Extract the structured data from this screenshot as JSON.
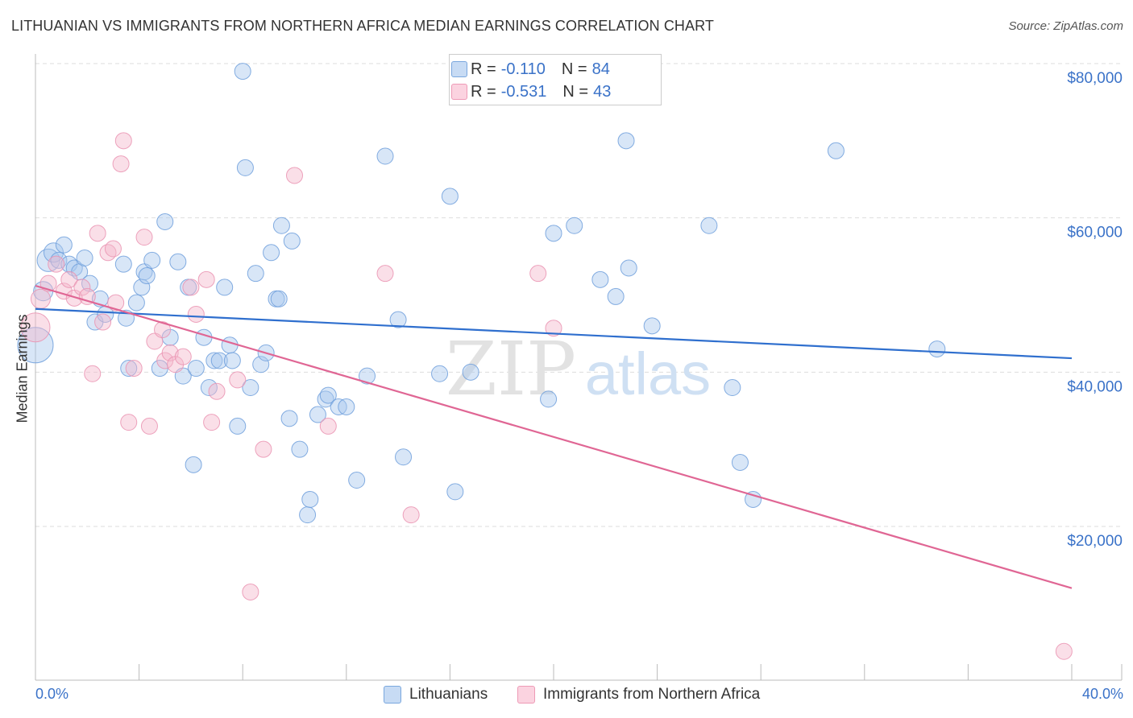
{
  "title": "LITHUANIAN VS IMMIGRANTS FROM NORTHERN AFRICA MEDIAN EARNINGS CORRELATION CHART",
  "source": "Source: ZipAtlas.com",
  "watermark": {
    "zip": "ZIP",
    "atlas": "atlas"
  },
  "legend": {
    "r_label": "R =",
    "n_label": "N =",
    "series1": {
      "r": "-0.110",
      "n": "84"
    },
    "series2": {
      "r": "-0.531",
      "n": "43"
    }
  },
  "colors": {
    "blue_fill": "#a8c8ee",
    "blue_line": "#2f6fce",
    "pink_fill": "#f5b8cc",
    "pink_line": "#e06694",
    "axis_text": "#3a72c8",
    "grid": "#dddddd"
  },
  "chart_data": {
    "type": "scatter",
    "title": "LITHUANIAN VS IMMIGRANTS FROM NORTHERN AFRICA MEDIAN EARNINGS CORRELATION CHART",
    "xlabel": "",
    "ylabel": "Median Earnings",
    "xlim": [
      0,
      40
    ],
    "ylim": [
      0,
      81000
    ],
    "x_tick_labels": [
      "0.0%",
      "40.0%"
    ],
    "y_ticks": [
      20000,
      40000,
      60000,
      80000
    ],
    "y_tick_labels": [
      "$20,000",
      "$40,000",
      "$60,000",
      "$80,000"
    ],
    "series": [
      {
        "name": "Lithuanians",
        "trend": {
          "x": [
            0,
            40
          ],
          "y": [
            48200,
            41800
          ]
        },
        "points": [
          [
            0.0,
            43500,
            22
          ],
          [
            0.3,
            50500,
            12
          ],
          [
            0.5,
            54500,
            14
          ],
          [
            0.7,
            55500,
            12
          ],
          [
            0.9,
            54500,
            10
          ],
          [
            1.1,
            56500,
            10
          ],
          [
            1.3,
            54000,
            10
          ],
          [
            1.5,
            53500,
            10
          ],
          [
            1.7,
            53000,
            10
          ],
          [
            1.9,
            54800,
            10
          ],
          [
            2.1,
            51500,
            10
          ],
          [
            2.3,
            46500,
            10
          ],
          [
            2.5,
            49500,
            10
          ],
          [
            2.7,
            47500,
            10
          ],
          [
            3.4,
            54000,
            10
          ],
          [
            3.5,
            47000,
            10
          ],
          [
            3.6,
            40500,
            10
          ],
          [
            3.9,
            49000,
            10
          ],
          [
            4.1,
            51000,
            10
          ],
          [
            4.2,
            53000,
            10
          ],
          [
            4.3,
            52500,
            10
          ],
          [
            4.5,
            54500,
            10
          ],
          [
            4.8,
            40500,
            10
          ],
          [
            5.0,
            59500,
            10
          ],
          [
            5.2,
            44500,
            10
          ],
          [
            5.5,
            54300,
            10
          ],
          [
            5.7,
            39500,
            10
          ],
          [
            5.9,
            51000,
            10
          ],
          [
            6.1,
            28000,
            10
          ],
          [
            6.2,
            40500,
            10
          ],
          [
            6.5,
            44500,
            10
          ],
          [
            6.7,
            38000,
            10
          ],
          [
            6.9,
            41500,
            10
          ],
          [
            7.1,
            41500,
            10
          ],
          [
            7.3,
            51000,
            10
          ],
          [
            7.5,
            43500,
            10
          ],
          [
            7.6,
            41500,
            10
          ],
          [
            7.8,
            33000,
            10
          ],
          [
            8.0,
            79000,
            10
          ],
          [
            8.1,
            66500,
            10
          ],
          [
            8.3,
            38000,
            10
          ],
          [
            8.5,
            52800,
            10
          ],
          [
            8.7,
            41000,
            10
          ],
          [
            8.9,
            42500,
            10
          ],
          [
            9.1,
            55500,
            10
          ],
          [
            9.3,
            49500,
            10
          ],
          [
            9.4,
            49500,
            10
          ],
          [
            9.5,
            59000,
            10
          ],
          [
            9.8,
            34000,
            10
          ],
          [
            9.9,
            57000,
            10
          ],
          [
            10.2,
            30000,
            10
          ],
          [
            10.5,
            21500,
            10
          ],
          [
            10.6,
            23500,
            10
          ],
          [
            10.9,
            34500,
            10
          ],
          [
            11.2,
            36500,
            10
          ],
          [
            11.3,
            37000,
            10
          ],
          [
            11.7,
            35500,
            10
          ],
          [
            12.0,
            35500,
            10
          ],
          [
            12.4,
            26000,
            10
          ],
          [
            12.8,
            39500,
            10
          ],
          [
            13.5,
            68000,
            10
          ],
          [
            14.0,
            46800,
            10
          ],
          [
            14.2,
            29000,
            10
          ],
          [
            15.6,
            39800,
            10
          ],
          [
            16.0,
            62800,
            10
          ],
          [
            16.2,
            24500,
            10
          ],
          [
            16.8,
            40000,
            10
          ],
          [
            19.8,
            36500,
            10
          ],
          [
            20.0,
            58000,
            10
          ],
          [
            20.8,
            59000,
            10
          ],
          [
            21.8,
            52000,
            10
          ],
          [
            22.4,
            49800,
            10
          ],
          [
            22.8,
            70000,
            10
          ],
          [
            22.9,
            53500,
            10
          ],
          [
            23.8,
            46000,
            10
          ],
          [
            26.0,
            59000,
            10
          ],
          [
            26.9,
            38000,
            10
          ],
          [
            27.2,
            28300,
            10
          ],
          [
            27.7,
            23500,
            10
          ],
          [
            30.9,
            68700,
            10
          ],
          [
            34.8,
            43000,
            10
          ]
        ]
      },
      {
        "name": "Immigrants from Northern Africa",
        "trend": {
          "x": [
            0,
            40
          ],
          "y": [
            51200,
            12000
          ]
        },
        "points": [
          [
            0.0,
            45800,
            18
          ],
          [
            0.2,
            49500,
            12
          ],
          [
            0.5,
            51500,
            10
          ],
          [
            0.8,
            54000,
            10
          ],
          [
            1.1,
            50500,
            10
          ],
          [
            1.3,
            52000,
            10
          ],
          [
            1.5,
            49600,
            10
          ],
          [
            1.8,
            51000,
            10
          ],
          [
            2.0,
            49800,
            10
          ],
          [
            2.2,
            39800,
            10
          ],
          [
            2.4,
            58000,
            10
          ],
          [
            2.6,
            46500,
            10
          ],
          [
            2.8,
            55500,
            10
          ],
          [
            3.0,
            56000,
            10
          ],
          [
            3.1,
            49000,
            10
          ],
          [
            3.3,
            67000,
            10
          ],
          [
            3.4,
            70000,
            10
          ],
          [
            3.6,
            33500,
            10
          ],
          [
            3.8,
            40500,
            10
          ],
          [
            4.2,
            57500,
            10
          ],
          [
            4.4,
            33000,
            10
          ],
          [
            4.6,
            44000,
            10
          ],
          [
            4.9,
            45500,
            10
          ],
          [
            5.0,
            41500,
            10
          ],
          [
            5.2,
            42500,
            10
          ],
          [
            5.4,
            41000,
            10
          ],
          [
            5.7,
            42000,
            10
          ],
          [
            6.0,
            51000,
            10
          ],
          [
            6.2,
            47500,
            10
          ],
          [
            6.6,
            52000,
            10
          ],
          [
            6.8,
            33500,
            10
          ],
          [
            7.0,
            37500,
            10
          ],
          [
            7.8,
            39000,
            10
          ],
          [
            8.3,
            11500,
            10
          ],
          [
            8.8,
            30000,
            10
          ],
          [
            10.0,
            65500,
            10
          ],
          [
            11.3,
            33000,
            10
          ],
          [
            13.5,
            52800,
            10
          ],
          [
            14.5,
            21500,
            10
          ],
          [
            19.4,
            52800,
            10
          ],
          [
            20.0,
            45700,
            10
          ],
          [
            39.7,
            3800,
            10
          ]
        ]
      }
    ]
  },
  "bottom_legend": {
    "series1": "Lithuanians",
    "series2": "Immigrants from Northern Africa"
  }
}
